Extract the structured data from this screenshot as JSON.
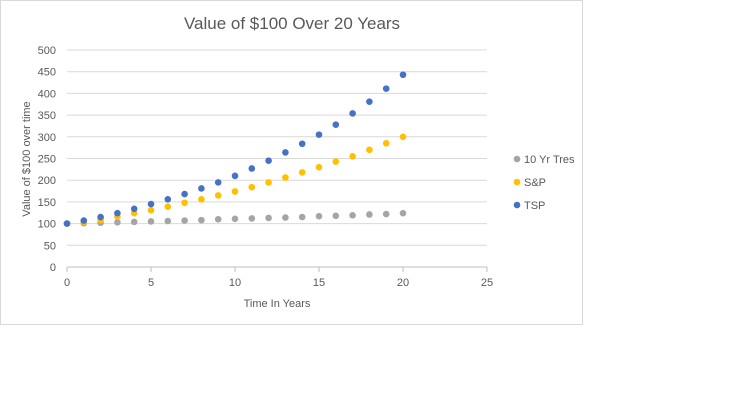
{
  "chart_data": {
    "type": "scatter",
    "title": "Value of $100 Over 20 Years",
    "xlabel": "Time In Years",
    "ylabel": "Value of $100 over time",
    "xlim": [
      0,
      25
    ],
    "ylim": [
      0,
      500
    ],
    "x_ticks": [
      0,
      5,
      10,
      15,
      20,
      25
    ],
    "y_ticks": [
      0,
      50,
      100,
      150,
      200,
      250,
      300,
      350,
      400,
      450,
      500
    ],
    "grid": "horizontal",
    "legend_position": "right",
    "series": [
      {
        "name": "10 Yr Tres",
        "color": "#a5a5a5",
        "x": [
          0,
          1,
          2,
          3,
          4,
          5,
          6,
          7,
          8,
          9,
          10,
          11,
          12,
          13,
          14,
          15,
          16,
          17,
          18,
          19,
          20
        ],
        "y": [
          100,
          101,
          102,
          103,
          104,
          105,
          106,
          107,
          108,
          110,
          111,
          112,
          113,
          114,
          115,
          117,
          118,
          119,
          121,
          122,
          124
        ]
      },
      {
        "name": "S&P",
        "color": "#ffc000",
        "x": [
          0,
          1,
          2,
          3,
          4,
          5,
          6,
          7,
          8,
          9,
          10,
          11,
          12,
          13,
          14,
          15,
          16,
          17,
          18,
          19,
          20
        ],
        "y": [
          100,
          104,
          108,
          116,
          124,
          131,
          139,
          148,
          156,
          165,
          174,
          184,
          195,
          206,
          218,
          230,
          243,
          255,
          270,
          285,
          300
        ]
      },
      {
        "name": "TSP",
        "color": "#4472c4",
        "x": [
          0,
          1,
          2,
          3,
          4,
          5,
          6,
          7,
          8,
          9,
          10,
          11,
          12,
          13,
          14,
          15,
          16,
          17,
          18,
          19,
          20
        ],
        "y": [
          100,
          107,
          115,
          124,
          134,
          145,
          156,
          168,
          181,
          195,
          210,
          227,
          245,
          264,
          284,
          305,
          328,
          354,
          381,
          411,
          443
        ]
      }
    ]
  }
}
